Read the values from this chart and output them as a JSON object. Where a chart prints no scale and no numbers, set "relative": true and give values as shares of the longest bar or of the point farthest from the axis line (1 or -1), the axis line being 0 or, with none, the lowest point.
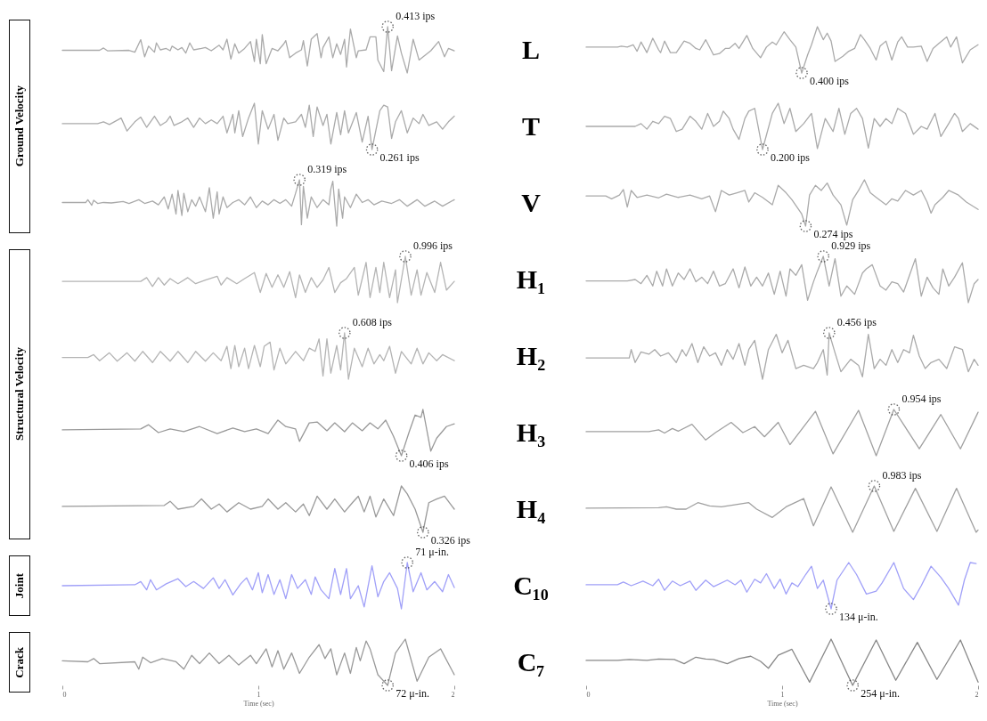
{
  "chart_data": [
    {
      "type": "line",
      "relative": true,
      "ylabel": "Ground Velocity",
      "xlim": [
        0,
        2
      ],
      "tick_labels": false,
      "x": [
        0,
        0.19,
        0.21,
        0.23,
        0.34,
        0.37,
        0.4,
        0.42,
        0.44,
        0.47,
        0.48,
        0.5,
        0.53,
        0.55,
        0.56,
        0.59,
        0.61,
        0.63,
        0.65,
        0.67,
        0.71,
        0.73,
        0.76,
        0.8,
        0.82,
        0.84,
        0.86,
        0.88,
        0.9,
        0.93,
        0.96,
        0.98,
        0.99,
        1.01,
        1.02,
        1.04,
        1.07,
        1.1,
        1.13,
        1.14,
        1.16,
        1.19,
        1.22,
        1.23,
        1.25,
        1.27,
        1.3,
        1.32,
        1.33,
        1.36,
        1.38,
        1.4,
        1.42,
        1.44,
        1.45,
        1.47,
        1.5,
        1.51,
        1.55,
        1.57,
        1.6,
        1.61,
        1.64,
        1.66,
        1.68,
        1.71,
        1.73,
        1.76,
        1.79,
        1.82,
        1.85,
        1.88,
        1.92,
        1.95,
        1.97,
        2.0
      ],
      "series": [
        {
          "color": "#aaaaaa",
          "values": [
            0.49,
            0.49,
            0.54,
            0.48,
            0.49,
            0.45,
            0.72,
            0.35,
            0.58,
            0.45,
            0.65,
            0.5,
            0.53,
            0.48,
            0.58,
            0.5,
            0.55,
            0.43,
            0.65,
            0.5,
            0.53,
            0.55,
            0.48,
            0.6,
            0.5,
            0.73,
            0.3,
            0.63,
            0.43,
            0.53,
            0.68,
            0.25,
            0.73,
            0.2,
            0.83,
            0.2,
            0.53,
            0.48,
            0.63,
            0.7,
            0.33,
            0.43,
            0.5,
            0.7,
            0.15,
            0.73,
            0.85,
            0.33,
            0.55,
            0.78,
            0.33,
            0.63,
            0.4,
            0.73,
            0.13,
            0.95,
            0.33,
            0.48,
            0.5,
            0.78,
            0.78,
            0.28,
            0.03,
            1.0,
            0.05,
            0.8,
            0.43,
            0,
            0.73,
            0.28,
            0.38,
            0.48,
            0.68,
            0.35,
            0.53,
            0.48
          ]
        }
      ],
      "annotations": [
        {
          "text": "0.413 ips",
          "x": 1.66,
          "y": 1
        }
      ]
    },
    {
      "type": "line",
      "relative": true,
      "title": "L",
      "xlim": [
        0,
        2
      ],
      "tick_labels": false,
      "x": [
        0,
        0.16,
        0.18,
        0.21,
        0.24,
        0.26,
        0.28,
        0.31,
        0.34,
        0.37,
        0.38,
        0.4,
        0.43,
        0.46,
        0.5,
        0.53,
        0.56,
        0.58,
        0.61,
        0.65,
        0.68,
        0.71,
        0.73,
        0.76,
        0.78,
        0.82,
        0.85,
        0.89,
        0.92,
        0.95,
        0.97,
        0.99,
        1.01,
        1.04,
        1.07,
        1.1,
        1.13,
        1.15,
        1.18,
        1.21,
        1.23,
        1.25,
        1.27,
        1.31,
        1.34,
        1.37,
        1.4,
        1.42,
        1.45,
        1.48,
        1.5,
        1.53,
        1.56,
        1.59,
        1.61,
        1.64,
        1.67,
        1.71,
        1.74,
        1.77,
        1.8,
        1.84,
        1.86,
        1.89,
        1.92,
        1.96,
        2.0
      ],
      "series": [
        {
          "color": "#aaaaaa",
          "values": [
            0.56,
            0.56,
            0.58,
            0.56,
            0.61,
            0.47,
            0.67,
            0.44,
            0.75,
            0.5,
            0.44,
            0.69,
            0.44,
            0.44,
            0.69,
            0.64,
            0.53,
            0.5,
            0.72,
            0.39,
            0.42,
            0.53,
            0.53,
            0.64,
            0.53,
            0.81,
            0.53,
            0.33,
            0.56,
            0.67,
            0.61,
            0.75,
            0.89,
            0.72,
            0.56,
            0,
            0.39,
            0.61,
            1.0,
            0.72,
            0.86,
            0.69,
            0.25,
            0.36,
            0.47,
            0.53,
            0.83,
            0.72,
            0.53,
            0.28,
            0.58,
            0.69,
            0.28,
            0.67,
            0.78,
            0.56,
            0.56,
            0.58,
            0.25,
            0.53,
            0.64,
            0.78,
            0.56,
            0.78,
            0.22,
            0.5,
            0.61
          ]
        }
      ],
      "annotations": [
        {
          "text": "0.400 ips",
          "x": 1.1,
          "y": 0
        }
      ]
    },
    {
      "type": "line",
      "relative": true,
      "xlim": [
        0,
        2
      ],
      "tick_labels": false,
      "x": [
        0,
        0.18,
        0.21,
        0.24,
        0.3,
        0.33,
        0.37,
        0.4,
        0.43,
        0.47,
        0.5,
        0.53,
        0.55,
        0.57,
        0.61,
        0.64,
        0.67,
        0.7,
        0.73,
        0.76,
        0.79,
        0.82,
        0.84,
        0.87,
        0.88,
        0.9,
        0.92,
        0.95,
        0.98,
        1.0,
        1.02,
        1.05,
        1.08,
        1.1,
        1.13,
        1.15,
        1.19,
        1.22,
        1.24,
        1.26,
        1.28,
        1.3,
        1.33,
        1.35,
        1.37,
        1.4,
        1.42,
        1.44,
        1.46,
        1.5,
        1.53,
        1.56,
        1.58,
        1.62,
        1.64,
        1.66,
        1.68,
        1.7,
        1.73,
        1.76,
        1.79,
        1.82,
        1.84,
        1.87,
        1.91,
        1.94,
        1.97,
        2.0
      ],
      "series": [
        {
          "color": "#aaaaaa",
          "values": [
            0.56,
            0.56,
            0.6,
            0.54,
            0.68,
            0.4,
            0.6,
            0.7,
            0.48,
            0.72,
            0.52,
            0.6,
            0.72,
            0.52,
            0.6,
            0.68,
            0.48,
            0.68,
            0.56,
            0.64,
            0.56,
            0.72,
            0.36,
            0.76,
            0.36,
            0.84,
            0.28,
            0.68,
            1.0,
            0.12,
            0.84,
            0.44,
            0.76,
            0.2,
            0.68,
            0.56,
            0.6,
            0.76,
            0.48,
            0.96,
            0.28,
            0.92,
            0.52,
            0.76,
            0.12,
            0.8,
            0.32,
            0.84,
            0.36,
            0.8,
            0.16,
            0.72,
            0,
            0.84,
            0.96,
            0.92,
            0.24,
            0.6,
            0.84,
            0.36,
            0.68,
            0.56,
            0.76,
            0.52,
            0.6,
            0.44,
            0.6,
            0.72
          ]
        }
      ],
      "annotations": [
        {
          "text": "0.261 ips",
          "x": 1.58,
          "y": 0
        }
      ]
    },
    {
      "type": "line",
      "relative": true,
      "title": "T",
      "xlim": [
        0,
        2
      ],
      "tick_labels": false,
      "x": [
        0,
        0.25,
        0.28,
        0.31,
        0.34,
        0.37,
        0.4,
        0.43,
        0.46,
        0.49,
        0.53,
        0.56,
        0.59,
        0.62,
        0.65,
        0.68,
        0.7,
        0.73,
        0.75,
        0.78,
        0.81,
        0.83,
        0.86,
        0.9,
        0.95,
        0.98,
        1.01,
        1.04,
        1.07,
        1.11,
        1.15,
        1.18,
        1.22,
        1.26,
        1.29,
        1.32,
        1.35,
        1.38,
        1.41,
        1.44,
        1.47,
        1.5,
        1.53,
        1.56,
        1.59,
        1.63,
        1.67,
        1.71,
        1.74,
        1.78,
        1.81,
        1.85,
        1.88,
        1.9,
        1.92,
        1.96,
        2.0
      ],
      "series": [
        {
          "color": "#aaaaaa",
          "values": [
            0.5,
            0.5,
            0.56,
            0.44,
            0.61,
            0.56,
            0.72,
            0.67,
            0.39,
            0.44,
            0.72,
            0.61,
            0.44,
            0.78,
            0.5,
            0.61,
            0.83,
            0.67,
            0.44,
            0.22,
            0.67,
            0.83,
            0.89,
            0,
            0.78,
            1.0,
            0.56,
            0.89,
            0.39,
            0.56,
            0.78,
            0.02,
            0.67,
            0.39,
            0.89,
            0.33,
            0.78,
            0.89,
            0.67,
            0.03,
            0.67,
            0.5,
            0.67,
            0.56,
            0.89,
            0.78,
            0.33,
            0.5,
            0.44,
            0.78,
            0.28,
            0.56,
            0.78,
            0.67,
            0.39,
            0.56,
            0.44
          ]
        }
      ],
      "annotations": [
        {
          "text": "0.200 ips",
          "x": 0.9,
          "y": 0
        }
      ]
    },
    {
      "type": "line",
      "relative": true,
      "xlim": [
        0,
        2
      ],
      "tick_labels": false,
      "x": [
        0,
        0.12,
        0.13,
        0.15,
        0.16,
        0.18,
        0.21,
        0.25,
        0.31,
        0.34,
        0.39,
        0.42,
        0.46,
        0.49,
        0.52,
        0.54,
        0.56,
        0.58,
        0.59,
        0.61,
        0.62,
        0.64,
        0.66,
        0.68,
        0.7,
        0.73,
        0.75,
        0.77,
        0.79,
        0.8,
        0.82,
        0.84,
        0.87,
        0.9,
        0.93,
        0.96,
        0.99,
        1.02,
        1.05,
        1.08,
        1.11,
        1.14,
        1.17,
        1.19,
        1.21,
        1.22,
        1.23,
        1.25,
        1.27,
        1.3,
        1.33,
        1.36,
        1.37,
        1.38,
        1.4,
        1.41,
        1.43,
        1.44,
        1.47,
        1.5,
        1.53,
        1.56,
        1.59,
        1.63,
        1.68,
        1.72,
        1.76,
        1.81,
        1.85,
        1.9,
        1.94,
        2.0
      ],
      "series": [
        {
          "color": "#aaaaaa",
          "values": [
            0.51,
            0.51,
            0.57,
            0.45,
            0.56,
            0.49,
            0.51,
            0.5,
            0.53,
            0.49,
            0.57,
            0.49,
            0.54,
            0.46,
            0.63,
            0.37,
            0.69,
            0.26,
            0.77,
            0.23,
            0.71,
            0.31,
            0.57,
            0.43,
            0.63,
            0.31,
            0.83,
            0.17,
            0.74,
            0.26,
            0.63,
            0.4,
            0.51,
            0.57,
            0.46,
            0.63,
            0.4,
            0.54,
            0.46,
            0.57,
            0.49,
            0.57,
            0.43,
            0.71,
            1.0,
            0.03,
            0.86,
            0.17,
            0.63,
            0.4,
            0.57,
            0.46,
            0.8,
            0.97,
            0,
            0.8,
            0.17,
            0.63,
            0.4,
            0.69,
            0.51,
            0.57,
            0.46,
            0.54,
            0.49,
            0.57,
            0.43,
            0.57,
            0.43,
            0.54,
            0.43,
            0.57
          ]
        }
      ],
      "annotations": [
        {
          "text": "0.319 ips",
          "x": 1.21,
          "y": 1
        }
      ]
    },
    {
      "type": "line",
      "relative": true,
      "title": "V",
      "xlim": [
        0,
        2
      ],
      "tick_labels": false,
      "x": [
        0,
        0.1,
        0.13,
        0.17,
        0.19,
        0.21,
        0.23,
        0.26,
        0.31,
        0.37,
        0.41,
        0.47,
        0.53,
        0.59,
        0.63,
        0.66,
        0.69,
        0.73,
        0.77,
        0.81,
        0.83,
        0.86,
        0.9,
        0.95,
        0.98,
        1.02,
        1.05,
        1.1,
        1.12,
        1.14,
        1.17,
        1.2,
        1.23,
        1.26,
        1.3,
        1.33,
        1.36,
        1.39,
        1.42,
        1.45,
        1.48,
        1.53,
        1.56,
        1.59,
        1.63,
        1.67,
        1.71,
        1.74,
        1.76,
        1.78,
        1.82,
        1.85,
        1.9,
        1.94,
        2.0
      ],
      "series": [
        {
          "color": "#aaaaaa",
          "values": [
            0.65,
            0.65,
            0.59,
            0.67,
            0.79,
            0.41,
            0.77,
            0.62,
            0.67,
            0.61,
            0.69,
            0.62,
            0.67,
            0.59,
            0.65,
            0.31,
            0.77,
            0.67,
            0.72,
            0.77,
            0.52,
            0.72,
            0.62,
            0.46,
            0.88,
            0.72,
            0.57,
            0.26,
            0,
            0.67,
            0.88,
            0.77,
            0.93,
            0.67,
            0.46,
            0.02,
            0.57,
            0.77,
            1.0,
            0.72,
            0.62,
            0.46,
            0.59,
            0.54,
            0.77,
            0.67,
            0.77,
            0.52,
            0.28,
            0.46,
            0.62,
            0.77,
            0.67,
            0.52,
            0.36
          ]
        }
      ],
      "annotations": [
        {
          "text": "0.274 ips",
          "x": 1.12,
          "y": 0
        }
      ]
    },
    {
      "type": "line",
      "relative": true,
      "ylabel": "Structural Velocity",
      "xlim": [
        0,
        2
      ],
      "tick_labels": false,
      "x": [
        0,
        0.4,
        0.43,
        0.46,
        0.49,
        0.52,
        0.55,
        0.59,
        0.64,
        0.68,
        0.73,
        0.79,
        0.81,
        0.84,
        0.89,
        0.93,
        0.98,
        1.01,
        1.04,
        1.07,
        1.1,
        1.13,
        1.16,
        1.19,
        1.21,
        1.24,
        1.27,
        1.3,
        1.33,
        1.36,
        1.39,
        1.42,
        1.45,
        1.49,
        1.51,
        1.55,
        1.57,
        1.6,
        1.62,
        1.64,
        1.67,
        1.7,
        1.71,
        1.75,
        1.78,
        1.81,
        1.83,
        1.86,
        1.9,
        1.93,
        1.96,
        2.0
      ],
      "series": [
        {
          "color": "#b4b4b4",
          "values": [
            0.46,
            0.46,
            0.54,
            0.35,
            0.54,
            0.38,
            0.52,
            0.41,
            0.54,
            0.41,
            0.49,
            0.57,
            0.38,
            0.54,
            0.41,
            0.52,
            0.65,
            0.22,
            0.63,
            0.33,
            0.6,
            0.33,
            0.67,
            0.11,
            0.6,
            0.22,
            0.54,
            0.33,
            0.49,
            0.76,
            0.22,
            0.43,
            0.52,
            0.76,
            0.16,
            0.87,
            0.11,
            0.76,
            0.22,
            0.87,
            0.11,
            0.71,
            0,
            1.0,
            0.16,
            0.71,
            0.16,
            0.65,
            0.22,
            0.87,
            0.27,
            0.46
          ]
        }
      ],
      "annotations": [
        {
          "text": "0.996 ips",
          "x": 1.75,
          "y": 1
        }
      ]
    },
    {
      "type": "line",
      "relative": true,
      "title": "H₁",
      "xlim": [
        0,
        2
      ],
      "tick_labels": false,
      "x": [
        0,
        0.21,
        0.25,
        0.28,
        0.31,
        0.34,
        0.36,
        0.39,
        0.41,
        0.44,
        0.47,
        0.5,
        0.53,
        0.56,
        0.59,
        0.62,
        0.65,
        0.68,
        0.71,
        0.75,
        0.78,
        0.81,
        0.84,
        0.87,
        0.9,
        0.93,
        0.96,
        0.99,
        1.02,
        1.04,
        1.07,
        1.1,
        1.13,
        1.16,
        1.18,
        1.21,
        1.24,
        1.27,
        1.3,
        1.33,
        1.37,
        1.41,
        1.43,
        1.46,
        1.5,
        1.53,
        1.56,
        1.59,
        1.62,
        1.65,
        1.68,
        1.71,
        1.74,
        1.77,
        1.8,
        1.82,
        1.85,
        1.88,
        1.92,
        1.95,
        1.98,
        2.0
      ],
      "series": [
        {
          "color": "#aaaaaa",
          "values": [
            0.47,
            0.47,
            0.5,
            0.41,
            0.59,
            0.36,
            0.68,
            0.36,
            0.73,
            0.36,
            0.64,
            0.5,
            0.73,
            0.45,
            0.55,
            0.41,
            0.68,
            0.36,
            0.41,
            0.73,
            0.32,
            0.77,
            0.36,
            0.55,
            0.36,
            0.64,
            0.18,
            0.68,
            0.14,
            0.73,
            0.59,
            0.82,
            0.05,
            0.45,
            0.68,
            1.0,
            0.36,
            0.95,
            0.14,
            0.36,
            0.18,
            0.64,
            0.73,
            0.82,
            0.36,
            0.27,
            0.45,
            0.41,
            0.23,
            0.59,
            0.95,
            0.14,
            0.55,
            0.32,
            0.18,
            0.73,
            0.36,
            0.55,
            0.86,
            0,
            0.41,
            0.5
          ]
        }
      ],
      "annotations": [
        {
          "text": "0.929 ips",
          "x": 1.21,
          "y": 1
        }
      ]
    },
    {
      "type": "line",
      "relative": true,
      "xlim": [
        0,
        2
      ],
      "tick_labels": false,
      "x": [
        0,
        0.13,
        0.16,
        0.19,
        0.24,
        0.28,
        0.33,
        0.37,
        0.41,
        0.46,
        0.5,
        0.55,
        0.59,
        0.64,
        0.68,
        0.73,
        0.77,
        0.81,
        0.84,
        0.86,
        0.88,
        0.9,
        0.93,
        0.95,
        0.98,
        1.01,
        1.03,
        1.06,
        1.08,
        1.11,
        1.14,
        1.19,
        1.23,
        1.26,
        1.29,
        1.31,
        1.33,
        1.35,
        1.37,
        1.4,
        1.42,
        1.44,
        1.46,
        1.49,
        1.53,
        1.56,
        1.59,
        1.62,
        1.64,
        1.67,
        1.7,
        1.73,
        1.78,
        1.81,
        1.84,
        1.87,
        1.91,
        1.94,
        2.0
      ],
      "series": [
        {
          "color": "#b4b4b4",
          "values": [
            0.47,
            0.47,
            0.53,
            0.4,
            0.57,
            0.39,
            0.57,
            0.39,
            0.6,
            0.36,
            0.6,
            0.39,
            0.6,
            0.36,
            0.6,
            0.39,
            0.57,
            0.4,
            0.71,
            0.23,
            0.73,
            0.27,
            0.67,
            0.23,
            0.73,
            0.27,
            0.71,
            0.8,
            0.2,
            0.67,
            0.33,
            0.6,
            0.4,
            0.67,
            0.6,
            0.87,
            0.07,
            0.87,
            0.13,
            0.73,
            0.2,
            1.0,
            0,
            0.67,
            0.27,
            0.67,
            0.33,
            0.53,
            0.4,
            0.71,
            0.13,
            0.6,
            0.33,
            0.67,
            0.33,
            0.57,
            0.4,
            0.53,
            0.4
          ]
        }
      ],
      "annotations": [
        {
          "text": "0.608 ips",
          "x": 1.44,
          "y": 1
        }
      ]
    },
    {
      "type": "line",
      "relative": true,
      "title": "H₂",
      "xlim": [
        0,
        2
      ],
      "tick_labels": false,
      "x": [
        0,
        0.22,
        0.23,
        0.25,
        0.28,
        0.32,
        0.35,
        0.38,
        0.42,
        0.46,
        0.49,
        0.51,
        0.54,
        0.57,
        0.6,
        0.63,
        0.66,
        0.69,
        0.72,
        0.75,
        0.78,
        0.81,
        0.83,
        0.86,
        0.9,
        0.93,
        0.97,
        1.0,
        1.03,
        1.07,
        1.11,
        1.16,
        1.18,
        1.21,
        1.23,
        1.24,
        1.27,
        1.3,
        1.35,
        1.39,
        1.41,
        1.44,
        1.47,
        1.5,
        1.53,
        1.56,
        1.59,
        1.62,
        1.65,
        1.67,
        1.7,
        1.73,
        1.76,
        1.8,
        1.84,
        1.88,
        1.92,
        1.95,
        1.98,
        2.0
      ],
      "series": [
        {
          "color": "#aaaaaa",
          "values": [
            0.46,
            0.46,
            0.64,
            0.36,
            0.59,
            0.54,
            0.64,
            0.5,
            0.57,
            0.36,
            0.64,
            0.5,
            0.77,
            0.36,
            0.7,
            0.5,
            0.57,
            0.3,
            0.64,
            0.43,
            0.77,
            0.3,
            0.64,
            0.84,
            0,
            0.64,
            0.97,
            0.57,
            0.84,
            0.23,
            0.3,
            0.23,
            0.36,
            0.64,
            0.09,
            1.0,
            0.57,
            0.16,
            0.43,
            0.3,
            0.05,
            0.97,
            0.23,
            0.43,
            0.3,
            0.64,
            0.36,
            0.64,
            0.57,
            0.95,
            0.5,
            0.23,
            0.36,
            0.43,
            0.23,
            0.7,
            0.64,
            0.16,
            0.43,
            0.3
          ]
        }
      ],
      "annotations": [
        {
          "text": "0.456 ips",
          "x": 1.24,
          "y": 1
        }
      ]
    },
    {
      "type": "line",
      "relative": true,
      "xlim": [
        0,
        2
      ],
      "tick_labels": false,
      "x": [
        0,
        0.4,
        0.44,
        0.49,
        0.55,
        0.62,
        0.7,
        0.79,
        0.87,
        0.93,
        0.99,
        1.05,
        1.1,
        1.14,
        1.19,
        1.21,
        1.26,
        1.3,
        1.35,
        1.39,
        1.44,
        1.48,
        1.53,
        1.57,
        1.61,
        1.65,
        1.69,
        1.73,
        1.77,
        1.8,
        1.83,
        1.84,
        1.88,
        1.91,
        1.96,
        2.0
      ],
      "series": [
        {
          "color": "#999999",
          "values": [
            0.56,
            0.58,
            0.67,
            0.5,
            0.58,
            0.52,
            0.63,
            0.48,
            0.6,
            0.52,
            0.58,
            0.48,
            0.77,
            0.63,
            0.58,
            0.31,
            0.71,
            0.73,
            0.54,
            0.71,
            0.52,
            0.71,
            0.54,
            0.71,
            0.58,
            0.77,
            0.42,
            0,
            0.52,
            0.88,
            0.83,
            1.0,
            0.1,
            0.38,
            0.63,
            0.69
          ]
        }
      ],
      "annotations": [
        {
          "text": "0.406 ips",
          "x": 1.73,
          "y": 0
        }
      ]
    },
    {
      "type": "line",
      "relative": true,
      "title": "H₃",
      "xlim": [
        0,
        2
      ],
      "tick_labels": false,
      "x": [
        0,
        0.32,
        0.37,
        0.4,
        0.44,
        0.47,
        0.54,
        0.61,
        0.66,
        0.74,
        0.8,
        0.86,
        0.91,
        0.98,
        1.04,
        1.17,
        1.26,
        1.39,
        1.48,
        1.57,
        1.7,
        1.81,
        1.91,
        2.0
      ],
      "series": [
        {
          "color": "#a0a0a0",
          "values": [
            0.52,
            0.52,
            0.56,
            0.49,
            0.59,
            0.53,
            0.68,
            0.34,
            0.5,
            0.72,
            0.5,
            0.63,
            0.41,
            0.72,
            0.24,
            0.96,
            0.04,
            0.98,
            0,
            1.0,
            0.15,
            0.89,
            0.15,
            0.94
          ]
        }
      ],
      "annotations": [
        {
          "text": "0.954 ips",
          "x": 1.57,
          "y": 1
        }
      ]
    },
    {
      "type": "line",
      "relative": true,
      "xlim": [
        0,
        2
      ],
      "tick_labels": false,
      "x": [
        0,
        0.52,
        0.55,
        0.59,
        0.67,
        0.71,
        0.76,
        0.8,
        0.84,
        0.9,
        0.96,
        1.02,
        1.05,
        1.1,
        1.14,
        1.19,
        1.23,
        1.26,
        1.3,
        1.35,
        1.39,
        1.44,
        1.48,
        1.51,
        1.54,
        1.57,
        1.6,
        1.64,
        1.69,
        1.73,
        1.76,
        1.8,
        1.84,
        1.87,
        1.91,
        1.95,
        2.0
      ],
      "series": [
        {
          "color": "#999999",
          "values": [
            0.56,
            0.58,
            0.67,
            0.5,
            0.56,
            0.72,
            0.5,
            0.61,
            0.44,
            0.64,
            0.5,
            0.56,
            0.72,
            0.5,
            0.64,
            0.44,
            0.61,
            0.36,
            0.78,
            0.5,
            0.72,
            0.44,
            0.64,
            0.78,
            0.44,
            0.78,
            0.33,
            0.72,
            0.36,
            1.0,
            0.83,
            0.5,
            0,
            0.64,
            0.72,
            0.78,
            0.5
          ]
        }
      ],
      "annotations": [
        {
          "text": "0.326 ips",
          "x": 1.84,
          "y": 0
        }
      ]
    },
    {
      "type": "line",
      "relative": true,
      "title": "H₄",
      "xlim": [
        0,
        2
      ],
      "tick_labels": false,
      "x": [
        0,
        0.37,
        0.41,
        0.46,
        0.51,
        0.57,
        0.63,
        0.69,
        0.75,
        0.83,
        0.87,
        0.95,
        1.02,
        1.11,
        1.16,
        1.25,
        1.36,
        1.47,
        1.57,
        1.68,
        1.79,
        1.89,
        1.99,
        2.0
      ],
      "series": [
        {
          "color": "#a0a0a0",
          "values": [
            0.52,
            0.53,
            0.55,
            0.5,
            0.5,
            0.64,
            0.57,
            0.55,
            0.59,
            0.64,
            0.5,
            0.32,
            0.55,
            0.73,
            0.14,
            0.98,
            0,
            1.0,
            0.02,
            0.95,
            0.02,
            0.95,
            0,
            0.05
          ]
        }
      ],
      "annotations": [
        {
          "text": "0.983 ips",
          "x": 1.47,
          "y": 1
        }
      ]
    },
    {
      "type": "line",
      "relative": true,
      "ylabel": "Joint",
      "xlim": [
        0,
        2
      ],
      "tick_labels": false,
      "x": [
        0,
        0.37,
        0.4,
        0.43,
        0.45,
        0.48,
        0.53,
        0.59,
        0.63,
        0.67,
        0.72,
        0.77,
        0.8,
        0.83,
        0.87,
        0.91,
        0.94,
        0.97,
        1.0,
        1.02,
        1.05,
        1.08,
        1.11,
        1.14,
        1.17,
        1.2,
        1.24,
        1.27,
        1.29,
        1.32,
        1.36,
        1.39,
        1.42,
        1.45,
        1.47,
        1.51,
        1.54,
        1.58,
        1.61,
        1.64,
        1.67,
        1.71,
        1.73,
        1.76,
        1.79,
        1.83,
        1.86,
        1.9,
        1.94,
        1.97,
        2.0
      ],
      "series": [
        {
          "color": "#a0a0f8",
          "values": [
            0.5,
            0.52,
            0.59,
            0.41,
            0.63,
            0.41,
            0.54,
            0.65,
            0.48,
            0.59,
            0.44,
            0.67,
            0.44,
            0.63,
            0.3,
            0.54,
            0.67,
            0.41,
            0.78,
            0.35,
            0.74,
            0.31,
            0.63,
            0.22,
            0.74,
            0.44,
            0.63,
            0.31,
            0.69,
            0.41,
            0.22,
            0.87,
            0.31,
            0.87,
            0.22,
            0.5,
            0.04,
            0.93,
            0.26,
            0.59,
            0.78,
            0.44,
            0,
            1.0,
            0.37,
            0.78,
            0.41,
            0.59,
            0.37,
            0.74,
            0.46
          ]
        }
      ],
      "annotations": [
        {
          "text": "71 μ-in.",
          "x": 1.76,
          "y": 1
        }
      ]
    },
    {
      "type": "line",
      "relative": true,
      "title": "C₁₀",
      "xlim": [
        0,
        2
      ],
      "tick_labels": false,
      "x": [
        0,
        0.16,
        0.19,
        0.23,
        0.29,
        0.34,
        0.37,
        0.4,
        0.44,
        0.48,
        0.53,
        0.56,
        0.61,
        0.65,
        0.72,
        0.76,
        0.79,
        0.82,
        0.86,
        0.89,
        0.92,
        0.96,
        0.99,
        1.02,
        1.05,
        1.08,
        1.12,
        1.15,
        1.18,
        1.21,
        1.25,
        1.28,
        1.34,
        1.38,
        1.43,
        1.48,
        1.51,
        1.57,
        1.62,
        1.67,
        1.71,
        1.76,
        1.81,
        1.85,
        1.9,
        1.93,
        1.96,
        1.99
      ],
      "series": [
        {
          "color": "#a0a0f8",
          "values": [
            0.52,
            0.52,
            0.58,
            0.5,
            0.6,
            0.5,
            0.64,
            0.4,
            0.6,
            0.5,
            0.6,
            0.4,
            0.62,
            0.48,
            0.62,
            0.52,
            0.62,
            0.36,
            0.64,
            0.56,
            0.76,
            0.44,
            0.64,
            0.32,
            0.56,
            0.48,
            0.74,
            0.92,
            0.44,
            0.62,
            0,
            0.62,
            1.0,
            0.74,
            0.32,
            0.38,
            0.56,
            1.0,
            0.44,
            0.2,
            0.5,
            0.92,
            0.68,
            0.44,
            0.08,
            0.62,
            1.0,
            0.98
          ]
        }
      ],
      "annotations": [
        {
          "text": "134 μ-in.",
          "x": 1.25,
          "y": 0
        }
      ]
    },
    {
      "type": "line",
      "relative": true,
      "ylabel": "Crack",
      "xlabel": "Time (sec)",
      "xlim": [
        0,
        2
      ],
      "xticks": [
        0,
        1,
        2
      ],
      "tick_labels": "x",
      "x": [
        0,
        0.13,
        0.16,
        0.19,
        0.37,
        0.39,
        0.41,
        0.45,
        0.51,
        0.58,
        0.62,
        0.66,
        0.7,
        0.75,
        0.8,
        0.85,
        0.9,
        0.96,
        0.99,
        1.04,
        1.07,
        1.1,
        1.13,
        1.17,
        1.21,
        1.26,
        1.31,
        1.34,
        1.37,
        1.4,
        1.44,
        1.47,
        1.5,
        1.52,
        1.55,
        1.57,
        1.61,
        1.66,
        1.7,
        1.75,
        1.81,
        1.87,
        1.93,
        2.0
      ],
      "series": [
        {
          "color": "#999999",
          "values": [
            0.53,
            0.51,
            0.58,
            0.47,
            0.51,
            0.35,
            0.61,
            0.49,
            0.58,
            0.51,
            0.35,
            0.65,
            0.47,
            0.7,
            0.47,
            0.65,
            0.44,
            0.65,
            0.47,
            0.79,
            0.4,
            0.75,
            0.35,
            0.7,
            0.26,
            0.61,
            0.88,
            0.58,
            0.79,
            0.23,
            0.7,
            0.26,
            0.82,
            0.53,
            0.96,
            0.79,
            0.23,
            0,
            0.7,
            1.0,
            0.09,
            0.61,
            0.79,
            0.23
          ]
        }
      ],
      "annotations": [
        {
          "text": "72 μ-in.",
          "x": 1.66,
          "y": 0
        }
      ]
    },
    {
      "type": "line",
      "relative": true,
      "title": "C₇",
      "xlabel": "Time (sec)",
      "xlim": [
        0,
        2
      ],
      "xticks": [
        0,
        1,
        2
      ],
      "tick_labels": "x",
      "x": [
        0,
        0.16,
        0.22,
        0.31,
        0.37,
        0.45,
        0.5,
        0.56,
        0.61,
        0.65,
        0.72,
        0.78,
        0.84,
        0.89,
        0.93,
        0.98,
        1.05,
        1.14,
        1.25,
        1.36,
        1.48,
        1.58,
        1.69,
        1.79,
        1.91,
        2.0
      ],
      "series": [
        {
          "color": "#888888",
          "values": [
            0.54,
            0.54,
            0.56,
            0.54,
            0.57,
            0.56,
            0.47,
            0.61,
            0.57,
            0.56,
            0.47,
            0.58,
            0.63,
            0.52,
            0.37,
            0.65,
            0.78,
            0.07,
            1.0,
            0,
            0.98,
            0.11,
            0.93,
            0.13,
            0.98,
            0.07
          ]
        }
      ],
      "annotations": [
        {
          "text": "254 μ-in.",
          "x": 1.36,
          "y": 0
        }
      ]
    }
  ]
}
